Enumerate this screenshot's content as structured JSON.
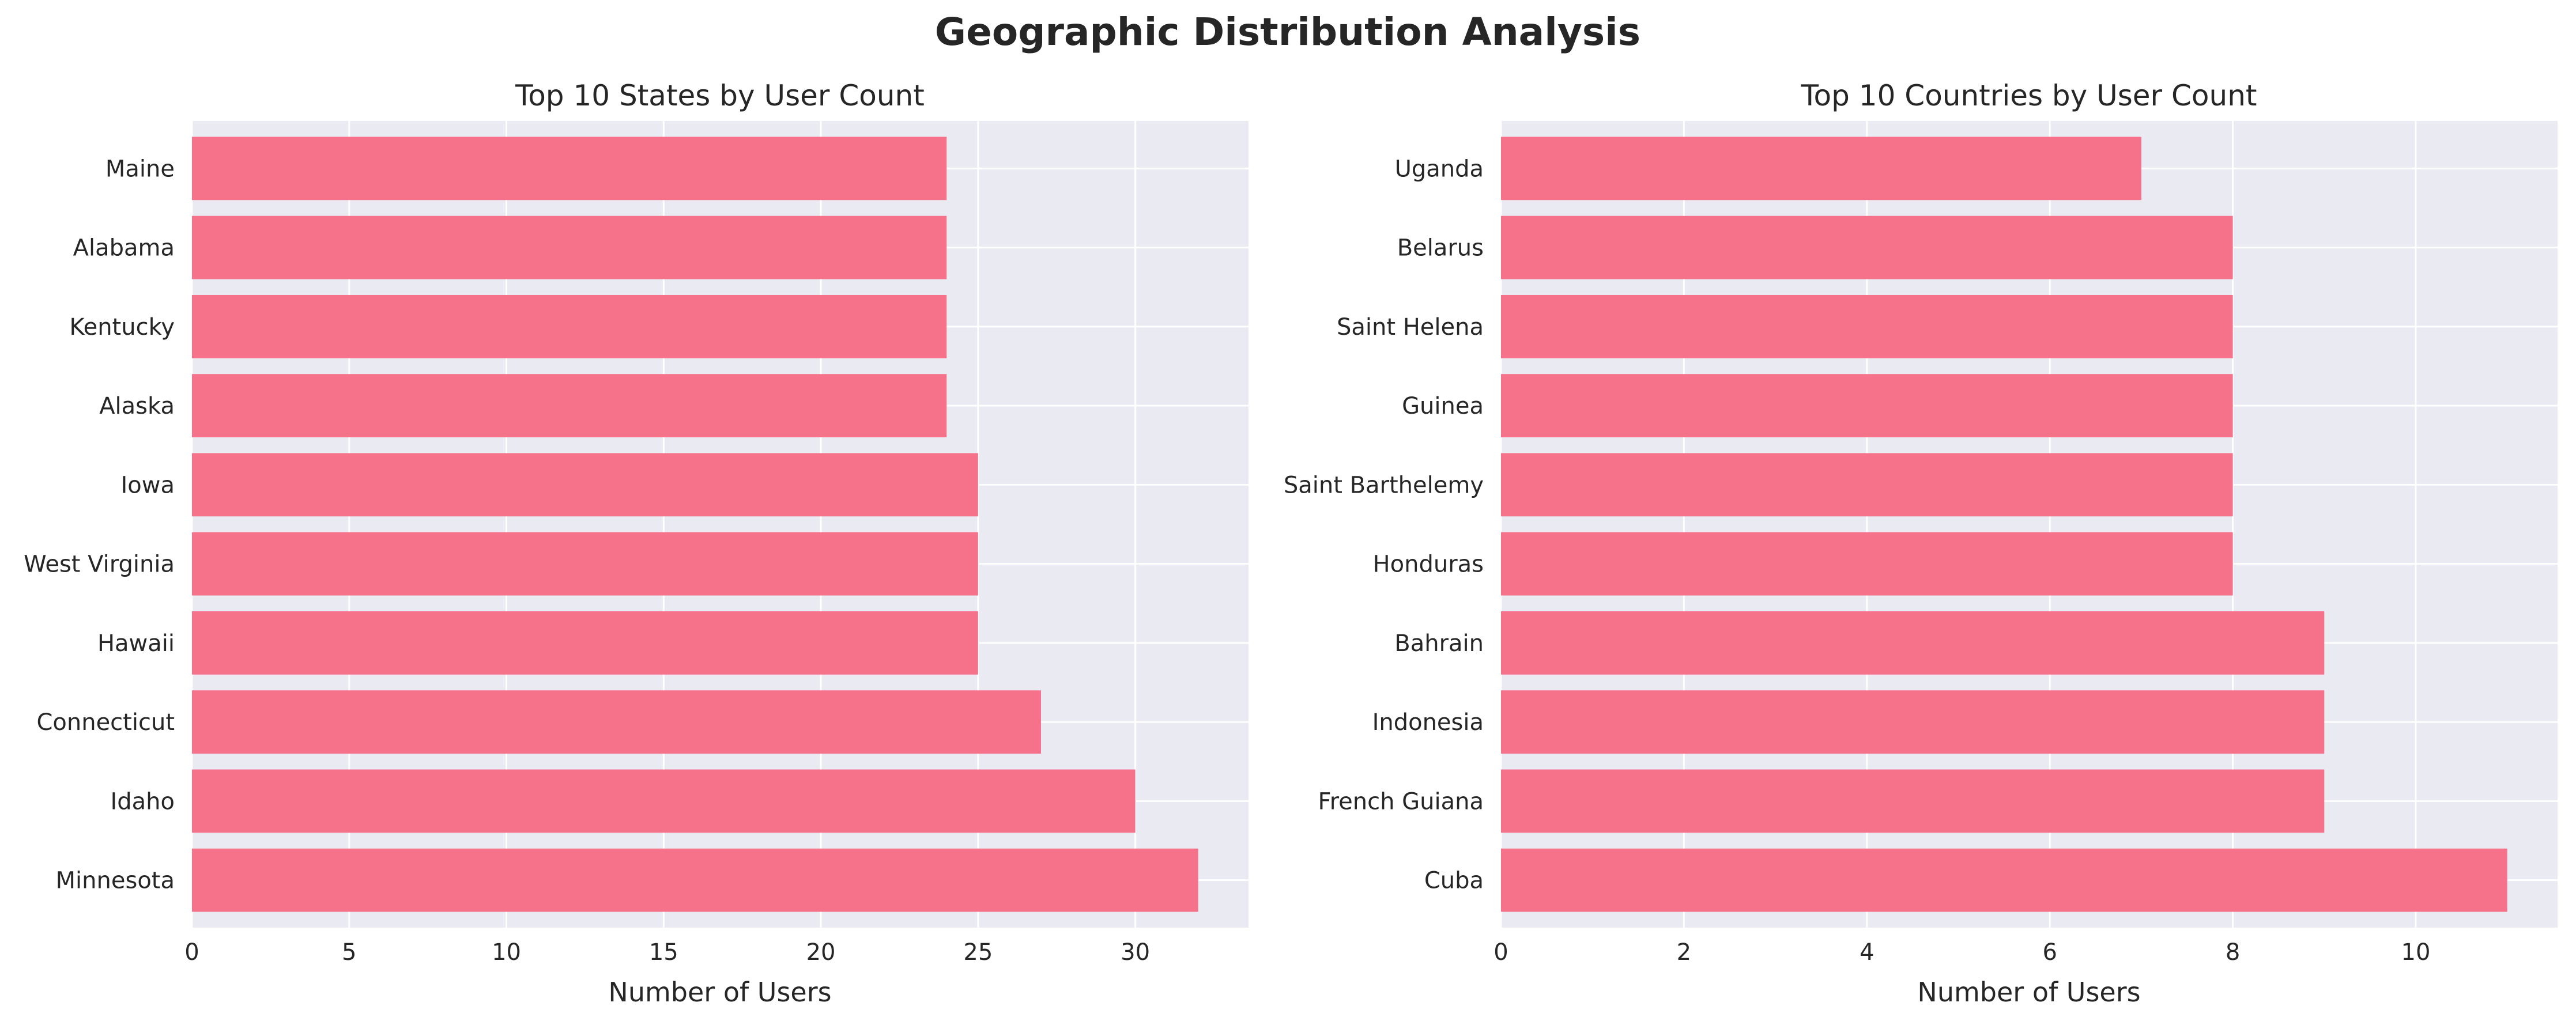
{
  "figure": {
    "title": "Geographic Distribution Analysis"
  },
  "colors": {
    "bar": "#f5728a",
    "plot_background": "#eaeaf2",
    "grid": "#ffffff",
    "text": "#262626"
  },
  "chart_data": [
    {
      "type": "bar",
      "orientation": "horizontal",
      "title": "Top 10 States by User Count",
      "xlabel": "Number of Users",
      "ylabel": "",
      "categories": [
        "Maine",
        "Alabama",
        "Kentucky",
        "Alaska",
        "Iowa",
        "West Virginia",
        "Hawaii",
        "Connecticut",
        "Idaho",
        "Minnesota"
      ],
      "values": [
        24,
        24,
        24,
        24,
        25,
        25,
        25,
        27,
        30,
        32
      ],
      "xlim": [
        0,
        33.6
      ],
      "xticks": [
        0,
        5,
        10,
        15,
        20,
        25,
        30
      ],
      "grid": true,
      "legend": "none"
    },
    {
      "type": "bar",
      "orientation": "horizontal",
      "title": "Top 10 Countries by User Count",
      "xlabel": "Number of Users",
      "ylabel": "",
      "categories": [
        "Uganda",
        "Belarus",
        "Saint Helena",
        "Guinea",
        "Saint Barthelemy",
        "Honduras",
        "Bahrain",
        "Indonesia",
        "French Guiana",
        "Cuba"
      ],
      "values": [
        7,
        8,
        8,
        8,
        8,
        8,
        9,
        9,
        9,
        11
      ],
      "xlim": [
        0,
        11.55
      ],
      "xticks": [
        0,
        2,
        4,
        6,
        8,
        10
      ],
      "grid": true,
      "legend": "none"
    }
  ]
}
